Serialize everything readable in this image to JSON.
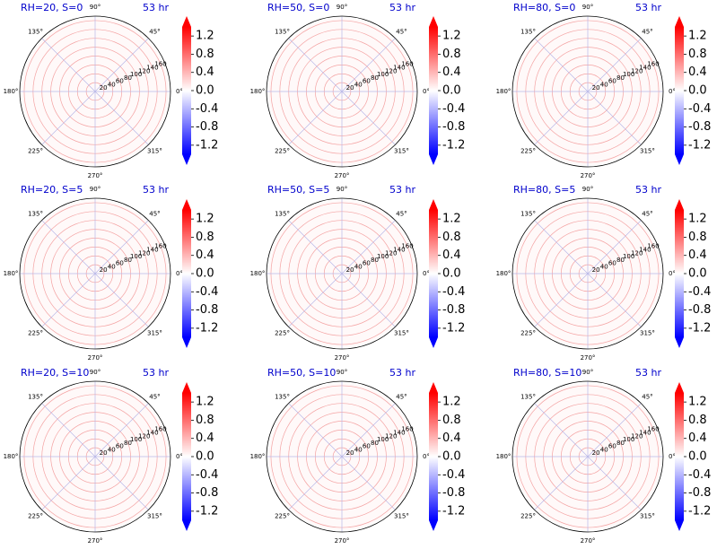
{
  "colors": {
    "title": "#0000cc",
    "ring": "#f4a3a3",
    "spoke": "#b8b8e8",
    "positive": "#ff0000",
    "negative": "#0000ff"
  },
  "angle_labels": [
    "0°",
    "45°",
    "90°",
    "135°",
    "180°",
    "225°",
    "270°",
    "315°"
  ],
  "radial_ticks": [
    20,
    40,
    60,
    80,
    100,
    120,
    140,
    160
  ],
  "colorbar": {
    "cmap": "bwr",
    "range": [
      -1.4,
      1.4
    ],
    "extend": "both",
    "ticks": [
      "-1.2",
      "-0.8",
      "-0.4",
      "0.0",
      "0.4",
      "0.8",
      "1.2"
    ]
  },
  "chart_data": [
    {
      "type": "heatmap",
      "projection": "polar",
      "title_left": "RH=20, S=0",
      "title_right": "53 hr"
    },
    {
      "type": "heatmap",
      "projection": "polar",
      "title_left": "RH=50, S=0",
      "title_right": "53 hr"
    },
    {
      "type": "heatmap",
      "projection": "polar",
      "title_left": "RH=80, S=0",
      "title_right": "53 hr"
    },
    {
      "type": "heatmap",
      "projection": "polar",
      "title_left": "RH=20, S=5",
      "title_right": "53 hr"
    },
    {
      "type": "heatmap",
      "projection": "polar",
      "title_left": "RH=50, S=5",
      "title_right": "53 hr"
    },
    {
      "type": "heatmap",
      "projection": "polar",
      "title_left": "RH=80, S=5",
      "title_right": "53 hr"
    },
    {
      "type": "heatmap",
      "projection": "polar",
      "title_left": "RH=20, S=10",
      "title_right": "53 hr"
    },
    {
      "type": "heatmap",
      "projection": "polar",
      "title_left": "RH=50, S=10",
      "title_right": "53 hr"
    },
    {
      "type": "heatmap",
      "projection": "polar",
      "title_left": "RH=80, S=10",
      "title_right": "53 hr"
    }
  ]
}
